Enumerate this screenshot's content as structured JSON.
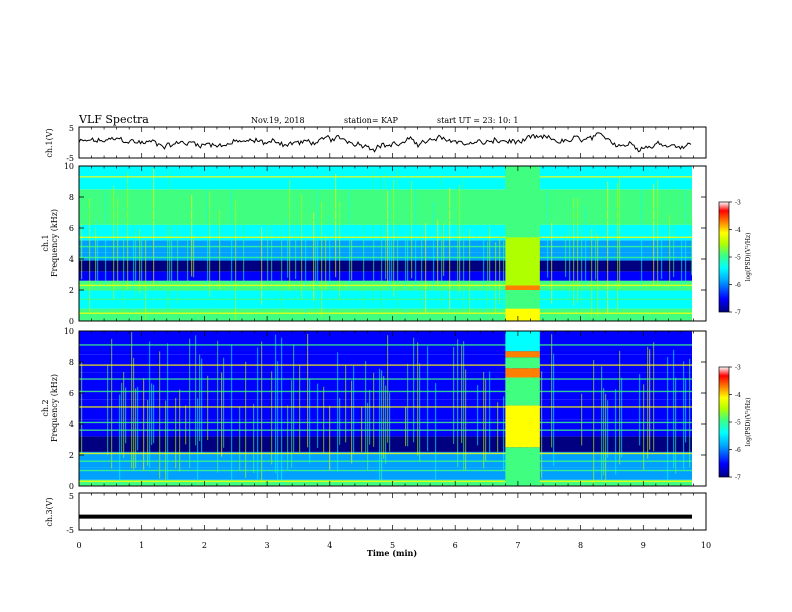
{
  "header": {
    "title": "VLF Spectra",
    "date": "Nov.19, 2018",
    "station": "station= KAP",
    "start": "start  UT  =   23: 10: 1"
  },
  "colors": {
    "spectrogram_palette": [
      "#000080",
      "#0000ff",
      "#00a0ff",
      "#00ffff",
      "#40ff80",
      "#b0ff00",
      "#ffff00",
      "#ff8000",
      "#ff0000",
      "#ffffff"
    ],
    "waveform": "#000000"
  },
  "chart_data": [
    {
      "type": "line",
      "name": "ch1-waveform",
      "ylabel": "ch.1(V)",
      "ylim": [
        -5,
        5
      ],
      "yticks": [
        "5",
        "-5"
      ],
      "xlim": [
        0,
        10
      ],
      "description_values": {
        "mean": 0.2,
        "amplitude": 2.0
      },
      "grid": false
    },
    {
      "type": "heatmap",
      "name": "ch1-spectrogram",
      "ylabel": "ch.1\nFrequency (kHz)",
      "ylim": [
        0,
        10
      ],
      "yticks": [
        "0",
        "2",
        "4",
        "6",
        "8",
        "10"
      ],
      "xlim": [
        0,
        10
      ],
      "burst_interval_min": [
        6.8,
        7.35
      ],
      "colorbar": {
        "label": "log(PSD)(V²/Hz)",
        "range": [
          -7,
          -3
        ],
        "ticks": [
          "-3",
          "-4",
          "-5",
          "-6",
          "-7"
        ]
      }
    },
    {
      "type": "heatmap",
      "name": "ch2-spectrogram",
      "ylabel": "ch.2\nFrequency (kHz)",
      "ylim": [
        0,
        10
      ],
      "yticks": [
        "0",
        "2",
        "4",
        "6",
        "8",
        "10"
      ],
      "xlim": [
        0,
        10
      ],
      "burst_interval_min": [
        6.8,
        7.35
      ],
      "colorbar": {
        "label": "log(PSD)(V²/Hz)",
        "range": [
          -7,
          -3
        ],
        "ticks": [
          "-3",
          "-4",
          "-5",
          "-6",
          "-7"
        ]
      }
    },
    {
      "type": "line",
      "name": "ch3-signal",
      "ylabel": "ch.3(V)",
      "ylim": [
        -5,
        5
      ],
      "yticks": [
        "5",
        "-5"
      ],
      "xlim": [
        0,
        10
      ],
      "values_y": [
        -1.4,
        -1.4
      ]
    }
  ],
  "x_axis": {
    "label": "Time  (min)",
    "ticks": [
      "0",
      "1",
      "2",
      "3",
      "4",
      "5",
      "6",
      "7",
      "8",
      "9",
      "10"
    ],
    "range": [
      0,
      10
    ]
  }
}
